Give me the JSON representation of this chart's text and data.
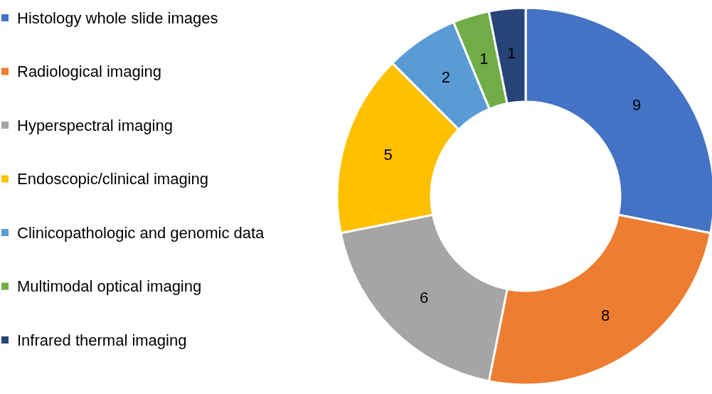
{
  "chart_data": {
    "type": "donut",
    "categories": [
      "Histology whole slide images",
      "Radiological imaging",
      "Hyperspectral imaging",
      "Endoscopic/clinical imaging",
      "Clinicopathologic and genomic data",
      "Multimodal optical imaging",
      "Infrared thermal imaging"
    ],
    "values": [
      9,
      8,
      6,
      5,
      2,
      1,
      1
    ],
    "colors": [
      "#4472c4",
      "#ed7d31",
      "#a5a5a5",
      "#ffc000",
      "#5b9bd5",
      "#70ad47",
      "#264478"
    ],
    "data_labels": true,
    "legend": "left"
  }
}
